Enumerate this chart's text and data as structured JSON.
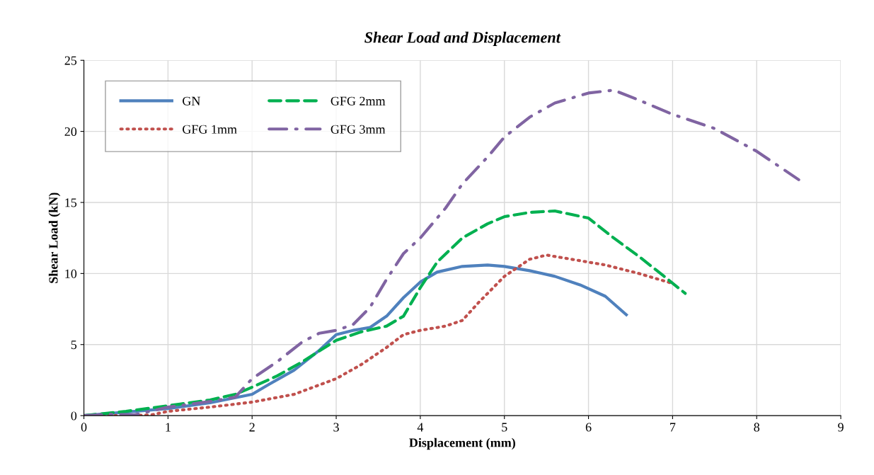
{
  "chart_data": {
    "type": "line",
    "title": "Shear Load and Displacement",
    "xlabel": "Displacement (mm)",
    "ylabel": "Shear Load (kN)",
    "xlim": [
      0,
      9
    ],
    "xticks": [
      0,
      1,
      2,
      3,
      4,
      5,
      6,
      7,
      8,
      9
    ],
    "ylim": [
      0,
      25
    ],
    "yticks": [
      0,
      5,
      10,
      15,
      20,
      25
    ],
    "grid": true,
    "legend": "top left",
    "series": [
      {
        "name": "GN",
        "color": "#4f81bd",
        "line_style": "solid",
        "x": [
          0,
          0.5,
          1,
          1.5,
          2,
          2.2,
          2.5,
          2.8,
          3,
          3.2,
          3.4,
          3.6,
          3.8,
          4,
          4.2,
          4.5,
          4.8,
          5,
          5.3,
          5.6,
          5.9,
          6.2,
          6.45
        ],
        "values": [
          0,
          0.25,
          0.5,
          0.9,
          1.5,
          2.2,
          3.2,
          4.6,
          5.7,
          6.0,
          6.2,
          7.0,
          8.3,
          9.4,
          10.1,
          10.5,
          10.6,
          10.5,
          10.2,
          9.8,
          9.2,
          8.4,
          7.1
        ]
      },
      {
        "name": "GFG 1mm",
        "color": "#c0504d",
        "line_style": "dotted",
        "x": [
          0,
          0.5,
          0.8,
          1,
          1.5,
          2,
          2.5,
          3,
          3.3,
          3.6,
          3.8,
          4,
          4.3,
          4.5,
          4.7,
          5,
          5.3,
          5.5,
          5.8,
          6.2,
          6.6,
          7
        ],
        "values": [
          0,
          0,
          0.05,
          0.3,
          0.6,
          0.95,
          1.5,
          2.6,
          3.6,
          4.8,
          5.7,
          6.0,
          6.3,
          6.7,
          8.0,
          9.8,
          11.0,
          11.3,
          11.0,
          10.6,
          10.0,
          9.3
        ]
      },
      {
        "name": "GFG 2mm",
        "color": "#00b050",
        "line_style": "dashed",
        "x": [
          0,
          0.5,
          1,
          1.5,
          1.8,
          2,
          2.3,
          2.6,
          3,
          3.3,
          3.6,
          3.8,
          4,
          4.2,
          4.5,
          4.8,
          5,
          5.3,
          5.6,
          6,
          6.3,
          6.6,
          6.9,
          7.15
        ],
        "values": [
          0,
          0.3,
          0.7,
          1.1,
          1.5,
          2.0,
          2.8,
          3.8,
          5.3,
          5.9,
          6.3,
          7.0,
          9.0,
          10.8,
          12.5,
          13.5,
          14.0,
          14.3,
          14.4,
          13.9,
          12.5,
          11.2,
          9.8,
          8.6
        ]
      },
      {
        "name": "GFG 3mm",
        "color": "#8064a2",
        "line_style": "dashdot",
        "x": [
          0,
          0.3,
          0.6,
          1,
          1.5,
          1.8,
          2,
          2.3,
          2.6,
          2.8,
          3,
          3.2,
          3.4,
          3.6,
          3.8,
          4,
          4.3,
          4.5,
          4.8,
          5,
          5.3,
          5.6,
          6,
          6.3,
          6.6,
          7,
          7.5,
          8,
          8.5
        ],
        "values": [
          0,
          0.1,
          0.05,
          0.6,
          1.0,
          1.3,
          2.6,
          3.8,
          5.2,
          5.8,
          6.0,
          6.4,
          7.6,
          9.6,
          11.4,
          12.5,
          14.6,
          16.3,
          18.2,
          19.6,
          21.0,
          22.0,
          22.7,
          22.9,
          22.2,
          21.2,
          20.2,
          18.6,
          16.6
        ]
      }
    ]
  }
}
